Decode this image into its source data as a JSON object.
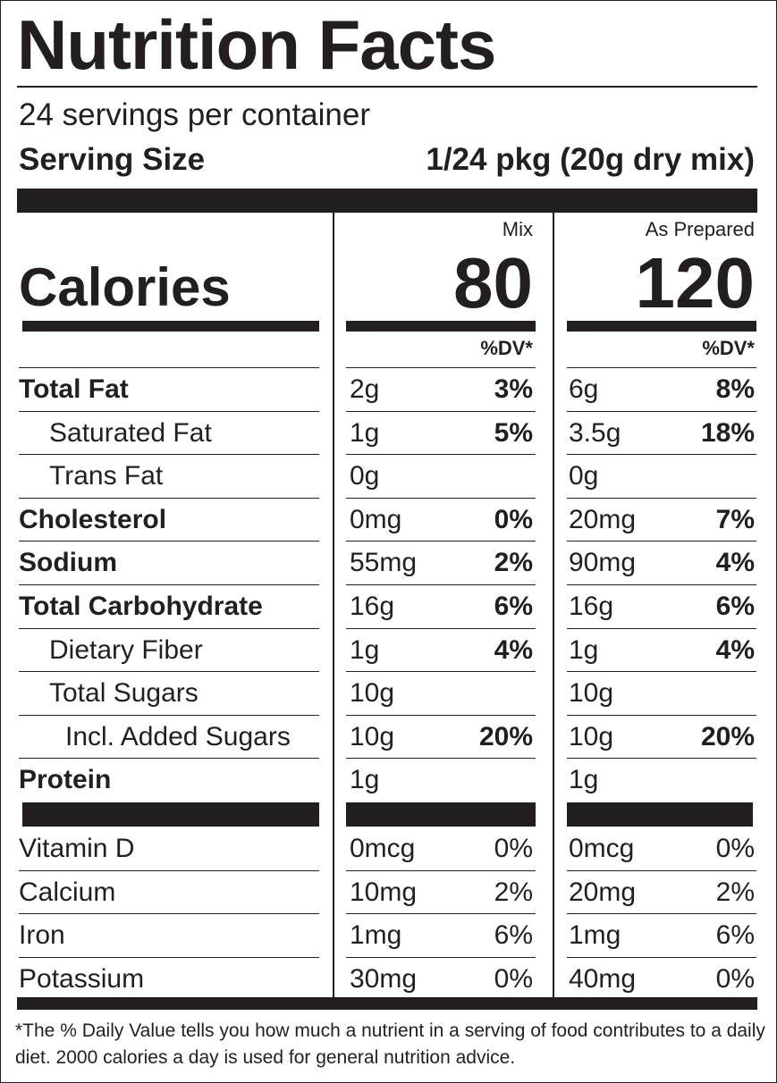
{
  "title": "Nutrition Facts",
  "servings": "24 servings per container",
  "serving_size": {
    "label": "Serving Size",
    "value": "1/24 pkg (20g dry mix)"
  },
  "calories_label": "Calories",
  "columns": [
    {
      "name": "Mix",
      "calories": 80,
      "dv_header": "%DV*"
    },
    {
      "name": "As Prepared",
      "calories": 120,
      "dv_header": "%DV*"
    }
  ],
  "nutrients": [
    {
      "name": "Total Fat",
      "bold": true,
      "indent": 0,
      "values": [
        [
          "2g",
          "3%"
        ],
        [
          "6g",
          "8%"
        ]
      ]
    },
    {
      "name": "Saturated Fat",
      "bold": false,
      "indent": 1,
      "values": [
        [
          "1g",
          "5%"
        ],
        [
          "3.5g",
          "18%"
        ]
      ]
    },
    {
      "name": "Trans Fat",
      "bold": false,
      "indent": 1,
      "values": [
        [
          "0g",
          null
        ],
        [
          "0g",
          null
        ]
      ]
    },
    {
      "name": "Cholesterol",
      "bold": true,
      "indent": 0,
      "values": [
        [
          "0mg",
          "0%"
        ],
        [
          "20mg",
          "7%"
        ]
      ]
    },
    {
      "name": "Sodium",
      "bold": true,
      "indent": 0,
      "values": [
        [
          "55mg",
          "2%"
        ],
        [
          "90mg",
          "4%"
        ]
      ]
    },
    {
      "name": "Total Carbohydrate",
      "bold": true,
      "indent": 0,
      "values": [
        [
          "16g",
          "6%"
        ],
        [
          "16g",
          "6%"
        ]
      ]
    },
    {
      "name": "Dietary Fiber",
      "bold": false,
      "indent": 1,
      "values": [
        [
          "1g",
          "4%"
        ],
        [
          "1g",
          "4%"
        ]
      ]
    },
    {
      "name": "Total Sugars",
      "bold": false,
      "indent": 1,
      "values": [
        [
          "10g",
          null
        ],
        [
          "10g",
          null
        ]
      ]
    },
    {
      "name": "Incl. Added Sugars",
      "bold": false,
      "indent": 2,
      "values": [
        [
          "10g",
          "20%"
        ],
        [
          "10g",
          "20%"
        ]
      ]
    },
    {
      "name": "Protein",
      "bold": true,
      "indent": 0,
      "values": [
        [
          "1g",
          null
        ],
        [
          "1g",
          null
        ]
      ]
    }
  ],
  "vitamins": [
    {
      "name": "Vitamin D",
      "values": [
        [
          "0mcg",
          "0%"
        ],
        [
          "0mcg",
          "0%"
        ]
      ]
    },
    {
      "name": "Calcium",
      "values": [
        [
          "10mg",
          "2%"
        ],
        [
          "20mg",
          "2%"
        ]
      ]
    },
    {
      "name": "Iron",
      "values": [
        [
          "1mg",
          "6%"
        ],
        [
          "1mg",
          "6%"
        ]
      ]
    },
    {
      "name": "Potassium",
      "values": [
        [
          "30mg",
          "0%"
        ],
        [
          "40mg",
          "0%"
        ]
      ]
    }
  ],
  "footnote": "*The % Daily Value tells you how much a nutrient in a serving of food contributes to a daily diet. 2000 calories a day is used for general nutrition advice."
}
